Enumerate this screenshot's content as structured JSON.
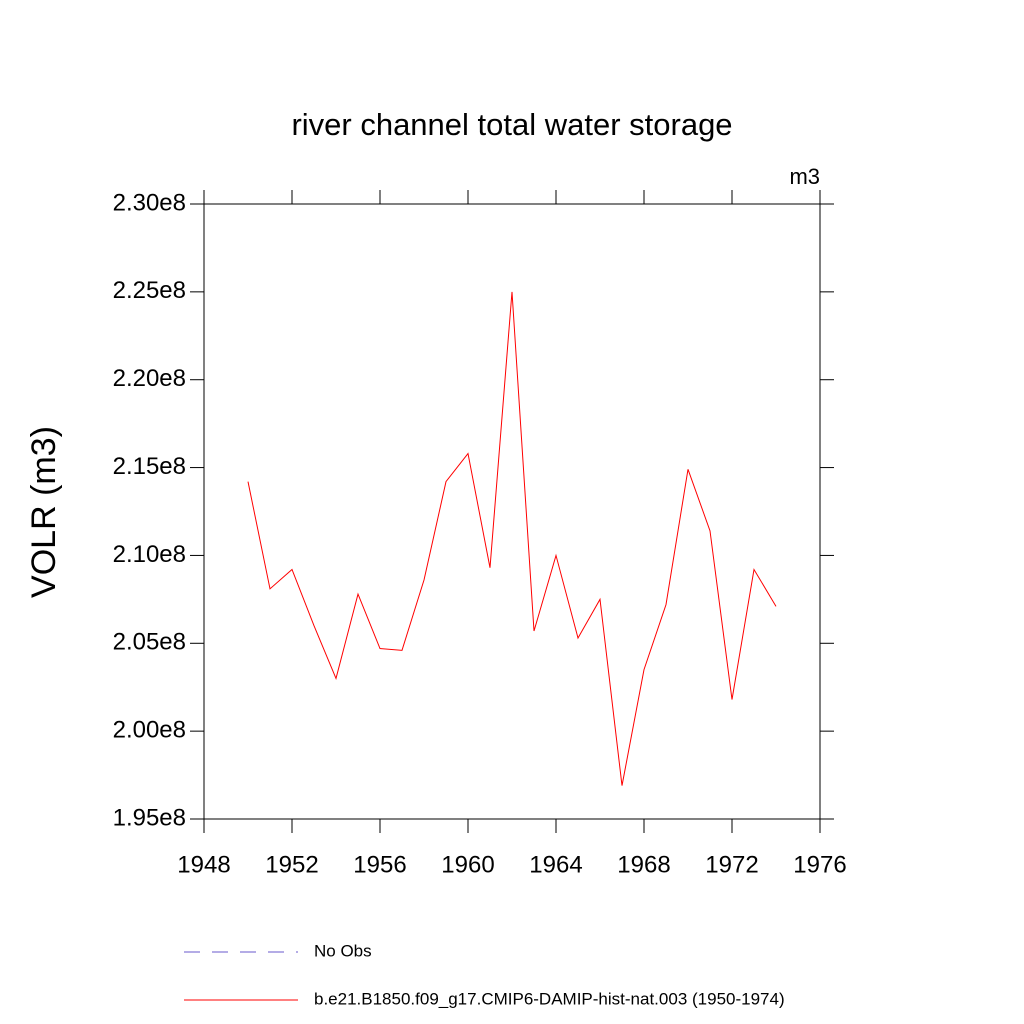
{
  "chart_data": {
    "type": "line",
    "title": "river channel total water storage",
    "units_label": "m3",
    "y_label": "VOLR  (m3)",
    "x": [
      1950,
      1951,
      1952,
      1953,
      1954,
      1955,
      1956,
      1957,
      1958,
      1959,
      1960,
      1961,
      1962,
      1963,
      1964,
      1965,
      1966,
      1967,
      1968,
      1969,
      1970,
      1971,
      1972,
      1973,
      1974
    ],
    "series": [
      {
        "name": "No Obs",
        "color": "#6a5acd",
        "dashed": true,
        "values": [
          null,
          null,
          null,
          null,
          null,
          null,
          null,
          null,
          null,
          null,
          null,
          null,
          null,
          null,
          null,
          null,
          null,
          null,
          null,
          null,
          null,
          null,
          null,
          null,
          null
        ]
      },
      {
        "name": "b.e21.B1850.f09_g17.CMIP6-DAMIP-hist-nat.003 (1950-1974)",
        "color": "#ff0000",
        "dashed": false,
        "values": [
          214200000,
          208100000,
          209200000,
          206000000,
          203000000,
          207800000,
          204700000,
          204600000,
          208600000,
          214200000,
          215800000,
          209300000,
          225000000,
          205700000,
          210000000,
          205300000,
          207500000,
          196900000,
          203500000,
          207200000,
          214900000,
          211400000,
          201800000,
          209200000,
          207100000
        ]
      }
    ],
    "xlim": [
      1948,
      1976
    ],
    "xticks": [
      1948,
      1952,
      1956,
      1960,
      1964,
      1968,
      1972,
      1976
    ],
    "ylim": [
      195000000,
      230000000
    ],
    "yticks": [
      {
        "value": 195000000,
        "label": "1.95e8"
      },
      {
        "value": 200000000,
        "label": "2.00e8"
      },
      {
        "value": 205000000,
        "label": "2.05e8"
      },
      {
        "value": 210000000,
        "label": "2.10e8"
      },
      {
        "value": 215000000,
        "label": "2.15e8"
      },
      {
        "value": 220000000,
        "label": "2.20e8"
      },
      {
        "value": 225000000,
        "label": "2.25e8"
      },
      {
        "value": 230000000,
        "label": "2.30e8"
      }
    ]
  }
}
